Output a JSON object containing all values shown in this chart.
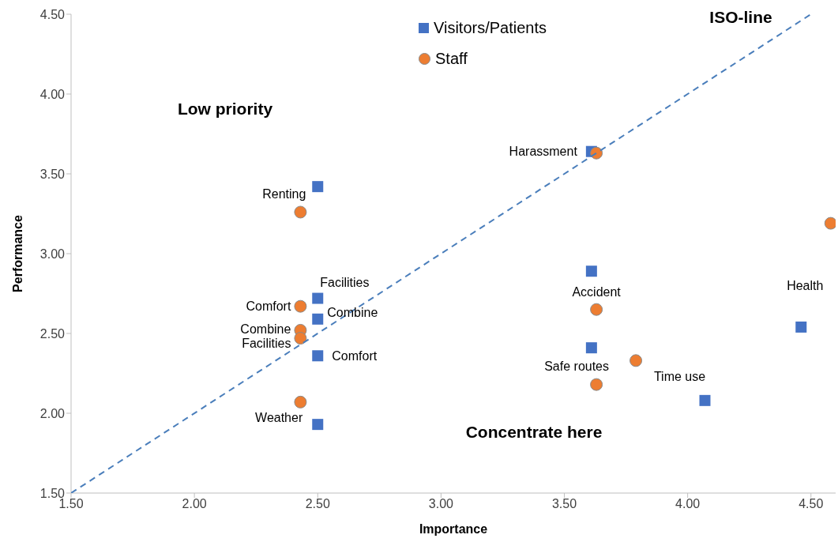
{
  "chart_data": {
    "type": "scatter",
    "xlabel": "Importance",
    "ylabel": "Performance",
    "xlim": [
      1.5,
      4.6
    ],
    "ylim": [
      1.5,
      4.5
    ],
    "xticks": [
      {
        "value": 1.5,
        "label": "1.50"
      },
      {
        "value": 2,
        "label": "2.00"
      },
      {
        "value": 2.5,
        "label": "2.50"
      },
      {
        "value": 3,
        "label": "3.00"
      },
      {
        "value": 3.5,
        "label": "3.50"
      },
      {
        "value": 4,
        "label": "4.00"
      },
      {
        "value": 4.5,
        "label": "4.50"
      }
    ],
    "yticks": [
      {
        "value": 1.5,
        "label": "1.50"
      },
      {
        "value": 2,
        "label": "2.00"
      },
      {
        "value": 2.5,
        "label": "2.50"
      },
      {
        "value": 3,
        "label": "3.00"
      },
      {
        "value": 3.5,
        "label": "3.50"
      },
      {
        "value": 4,
        "label": "4.00"
      },
      {
        "value": 4.5,
        "label": "4.50"
      }
    ],
    "grid": false,
    "legend": "top",
    "series": [
      {
        "name": "Visitors/Patients",
        "color": "#4472c4",
        "marker": "square",
        "x": [
          2.5,
          2.5,
          2.5,
          2.5,
          2.5,
          3.61,
          3.61,
          3.61,
          4.07,
          4.46
        ],
        "values": [
          3.42,
          2.72,
          2.59,
          2.36,
          1.93,
          3.64,
          2.89,
          2.41,
          2.08,
          2.54
        ]
      },
      {
        "name": "Staff",
        "color": "#ed7d31",
        "marker": "circle",
        "x": [
          2.43,
          2.43,
          2.43,
          2.43,
          2.43,
          3.63,
          3.63,
          3.63,
          3.79,
          4.58
        ],
        "values": [
          3.26,
          2.67,
          2.52,
          2.47,
          2.07,
          3.63,
          2.65,
          2.18,
          2.33,
          3.19
        ]
      },
      {
        "type": "line",
        "color": "#4a7ebb",
        "line_style": "dashed",
        "marker": "none",
        "x": [
          1.5,
          4.5
        ],
        "values": [
          1.5,
          4.5
        ]
      }
    ],
    "annotations": [
      "Low priority",
      "ISO-line",
      "Concentrate here",
      {
        "text": "Renting",
        "x": 2.43,
        "y": 3.26
      },
      {
        "text": "Facilities",
        "x": 2.5,
        "y": 2.72
      },
      {
        "text": "Comfort",
        "x": 2.43,
        "y": 2.67
      },
      {
        "text": "Combine",
        "x": 2.5,
        "y": 2.59
      },
      {
        "text": "Combine",
        "x": 2.43,
        "y": 2.52
      },
      {
        "text": "Facilities",
        "x": 2.43,
        "y": 2.47
      },
      {
        "text": "Comfort",
        "x": 2.5,
        "y": 2.36
      },
      {
        "text": "Weather",
        "x": 2.5,
        "y": 1.93
      },
      {
        "text": "Harassment",
        "x": 3.61,
        "y": 3.64
      },
      {
        "text": "Accident",
        "x": 3.63,
        "y": 2.65
      },
      {
        "text": "Safe routes",
        "x": 3.63,
        "y": 2.18
      },
      {
        "text": "Time use",
        "x": 4.07,
        "y": 2.08
      },
      {
        "text": "Health",
        "x": 4.46,
        "y": 2.54
      }
    ]
  }
}
